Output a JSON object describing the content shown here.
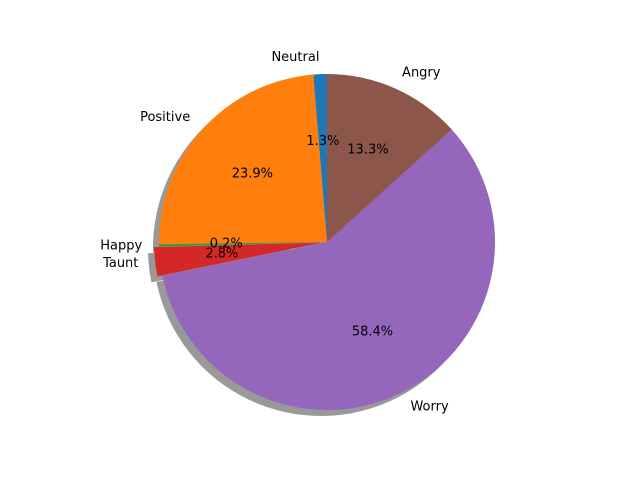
{
  "chart_data": {
    "type": "pie",
    "title": "",
    "shadow": true,
    "start_angle_deg": 90,
    "direction": "counterclockwise",
    "slices": [
      {
        "label": "Neutral",
        "value": 1.3,
        "pct_label": "1.3%",
        "color": "#1f77b4"
      },
      {
        "label": "Positive",
        "value": 23.9,
        "pct_label": "23.9%",
        "color": "#ff7f0e"
      },
      {
        "label": "Happy",
        "value": 0.2,
        "pct_label": "0.2%",
        "color": "#2ca02c"
      },
      {
        "label": "Taunt",
        "value": 2.8,
        "pct_label": "2.8%",
        "color": "#d62728"
      },
      {
        "label": "Worry",
        "value": 58.4,
        "pct_label": "58.4%",
        "color": "#9467bd"
      },
      {
        "label": "Angry",
        "value": 13.3,
        "pct_label": "13.3%",
        "color": "#8c564b"
      }
    ]
  }
}
